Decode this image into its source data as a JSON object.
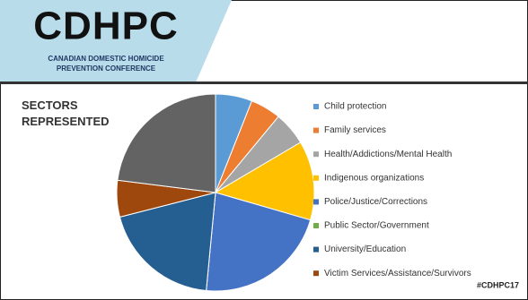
{
  "header": {
    "logo": "CDHPC",
    "subtitle_lines": [
      "CANADIAN DOMESTIC HOMICIDE",
      "PREVENTION CONFERENCE"
    ]
  },
  "chart_data": {
    "type": "pie",
    "title": "SECTORS REPRESENTED",
    "categories": [
      "Child protection",
      "Family services",
      "Health/Addictions/Mental Health",
      "Indigenous organizations",
      "Police/Justice/Corrections",
      "Public Sector/Government",
      "University/Education",
      "Victim Services/Assistance/Survivors",
      null
    ],
    "values": [
      6,
      5,
      5.5,
      13,
      22,
      0,
      19.5,
      6,
      23
    ],
    "colors": [
      "#5b9bd5",
      "#ed7d31",
      "#a5a5a5",
      "#ffc000",
      "#4472c4",
      "#70ad47",
      "#255e91",
      "#9e480e",
      "#636363"
    ]
  },
  "footer": {
    "hashtag": "#CDHPC17"
  }
}
